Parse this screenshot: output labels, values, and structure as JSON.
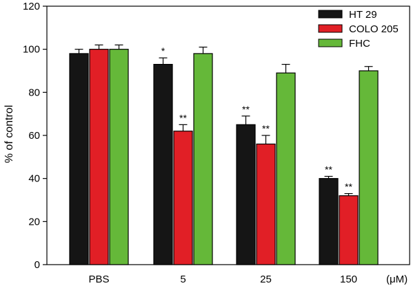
{
  "chart_data": {
    "type": "bar",
    "categories": [
      "PBS",
      "5",
      "25",
      "150"
    ],
    "xunit": "(μM)",
    "ylabel": "% of control",
    "ylim": [
      0,
      120
    ],
    "yticks": [
      0,
      20,
      40,
      60,
      80,
      100,
      120
    ],
    "legend_position": "top-right",
    "series": [
      {
        "name": "HT 29",
        "color": "#151515",
        "values": [
          98,
          93,
          65,
          40
        ],
        "errors": [
          2,
          3,
          4,
          1
        ],
        "annotations": [
          "",
          "*",
          "**",
          "**"
        ]
      },
      {
        "name": "COLO 205",
        "color": "#e11f26",
        "values": [
          100,
          62,
          56,
          32
        ],
        "errors": [
          2,
          3,
          4,
          1
        ],
        "annotations": [
          "",
          "**",
          "**",
          "**"
        ]
      },
      {
        "name": "FHC",
        "color": "#65b839",
        "values": [
          100,
          98,
          89,
          90
        ],
        "errors": [
          2,
          3,
          4,
          2
        ],
        "annotations": [
          "",
          "",
          "",
          ""
        ]
      }
    ]
  }
}
